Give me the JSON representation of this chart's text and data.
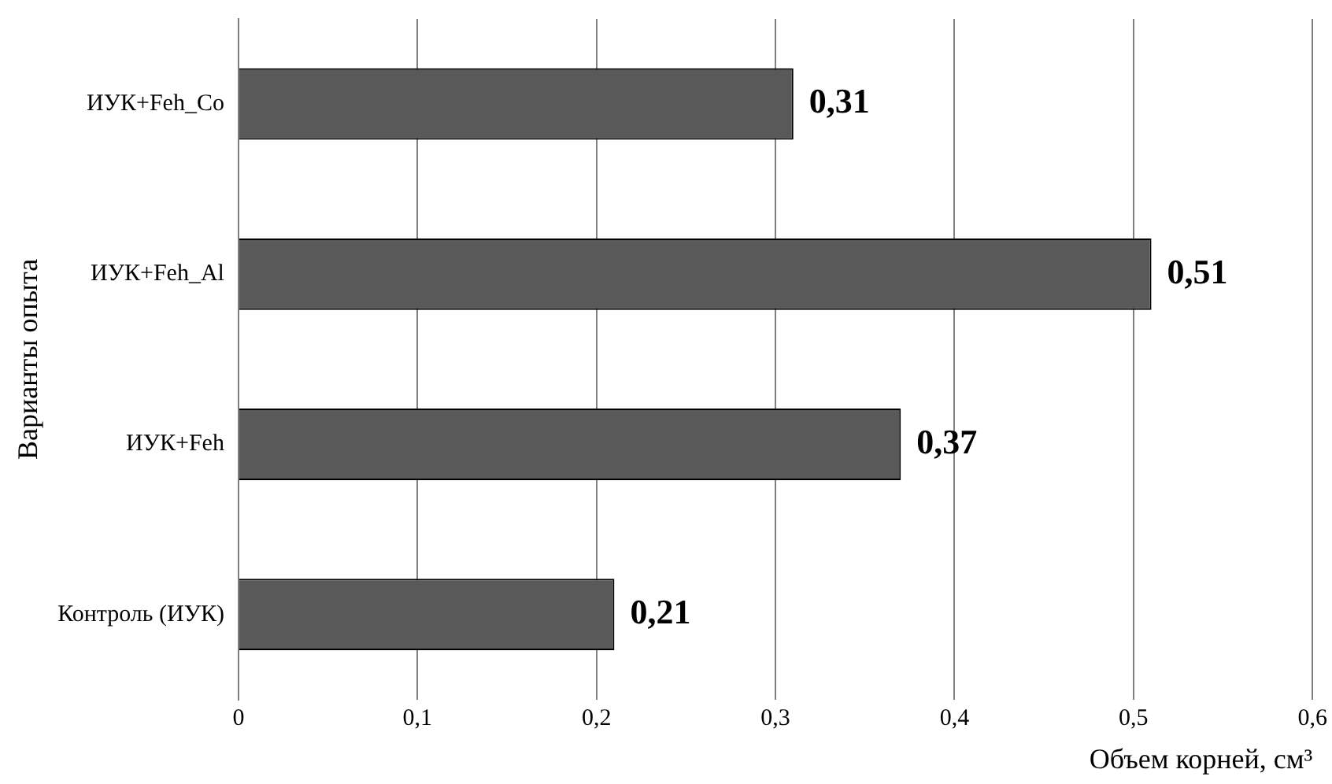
{
  "chart_data": {
    "type": "bar",
    "orientation": "horizontal",
    "xlabel": "Объем корней, см³",
    "ylabel": "Варианты опыта",
    "categories": [
      "ИУК+Feh_Co",
      "ИУК+Feh_Al",
      "ИУК+Feh",
      "Контроль (ИУК)"
    ],
    "values": [
      0.31,
      0.51,
      0.37,
      0.21
    ],
    "color": "#595959",
    "value_labels": [
      "0,31",
      "0,51",
      "0,37",
      "0,21"
    ],
    "xlim": [
      0,
      0.6
    ],
    "xticks": [
      0,
      {
        "value": 0.1,
        "label": "0,1"
      },
      {
        "value": 0.2,
        "label": "0,2"
      },
      {
        "value": 0.3,
        "label": "0,3"
      },
      {
        "value": 0.4,
        "label": "0,4"
      },
      {
        "value": 0.5,
        "label": "0,5"
      },
      {
        "value": 0.6,
        "label": "0,6"
      }
    ],
    "grid": "x",
    "legend": false
  }
}
